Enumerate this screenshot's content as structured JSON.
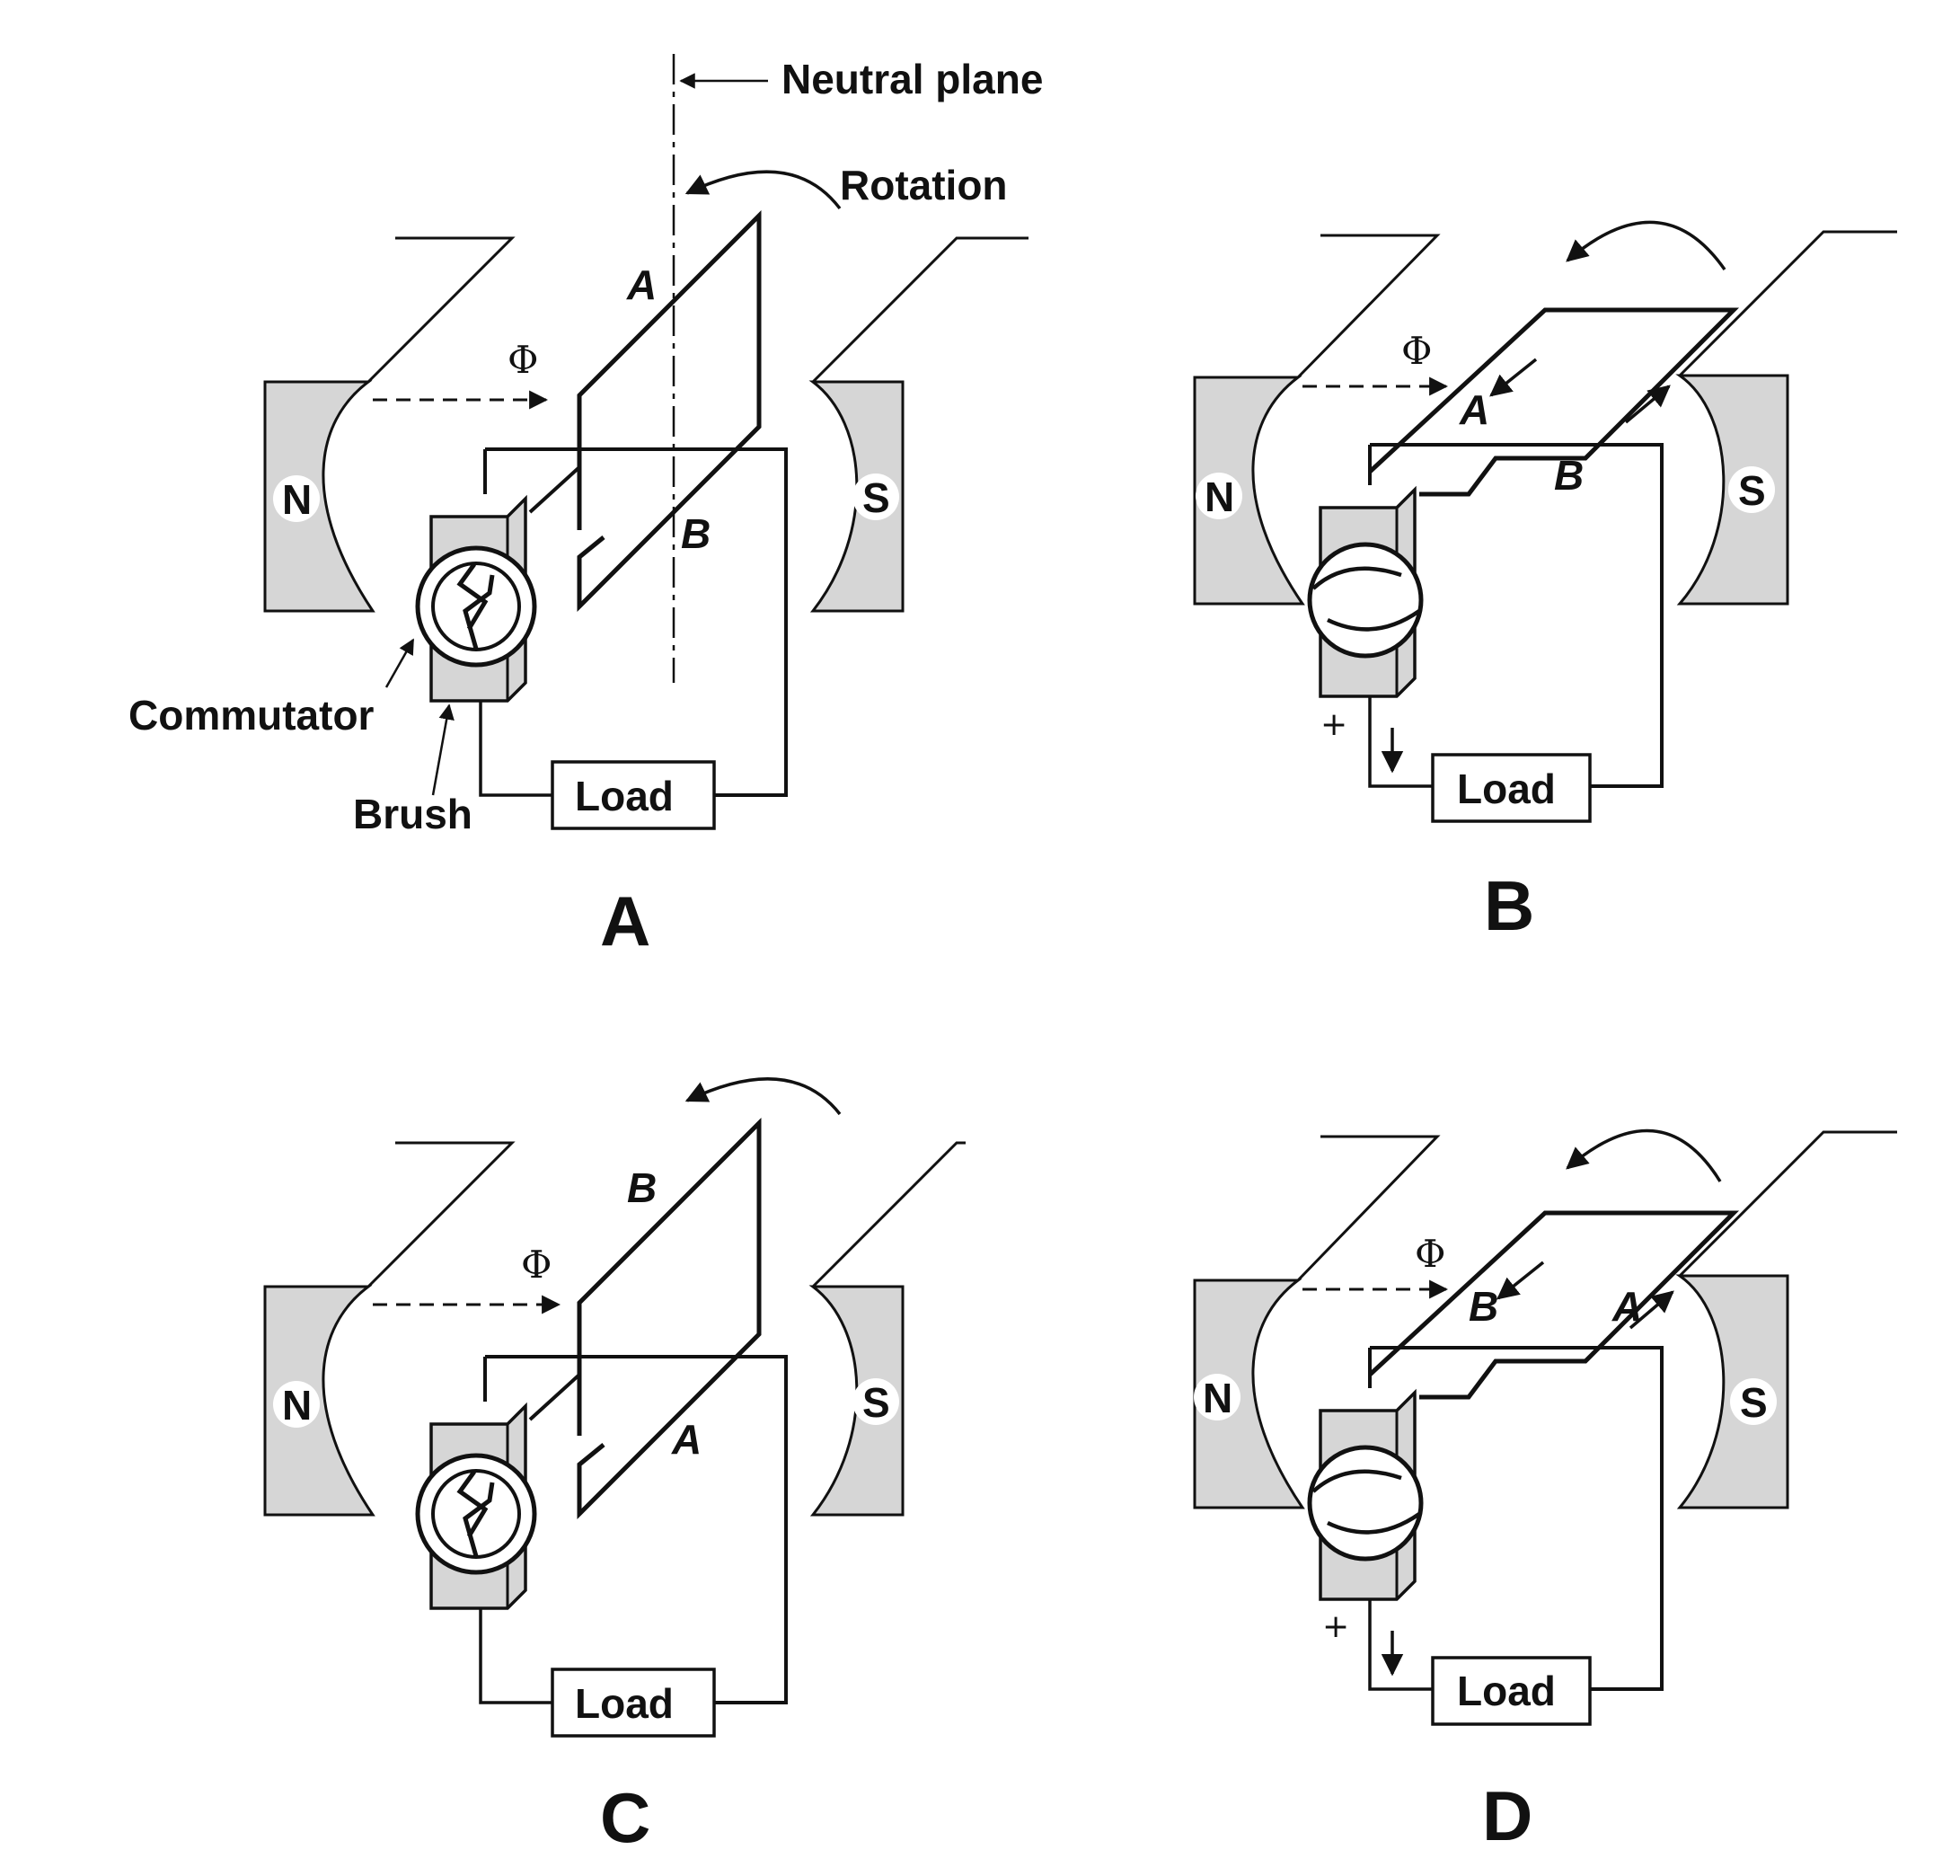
{
  "annotations": {
    "neutral_plane": "Neutral plane",
    "rotation": "Rotation",
    "commutator": "Commutator",
    "brush": "Brush"
  },
  "symbols": {
    "flux": "Φ",
    "north": "N",
    "south": "S",
    "load": "Load",
    "plus": "+"
  },
  "panels": [
    {
      "label": "A",
      "coil_top": "A",
      "coil_bottom": "B"
    },
    {
      "label": "B",
      "coil_top": "A",
      "coil_bottom": "B"
    },
    {
      "label": "C",
      "coil_top": "B",
      "coil_bottom": "A"
    },
    {
      "label": "D",
      "coil_top": "B",
      "coil_bottom": "A"
    }
  ],
  "colors": {
    "pole_fill": "#d6d6d6",
    "line": "#111111",
    "background": "#ffffff"
  }
}
